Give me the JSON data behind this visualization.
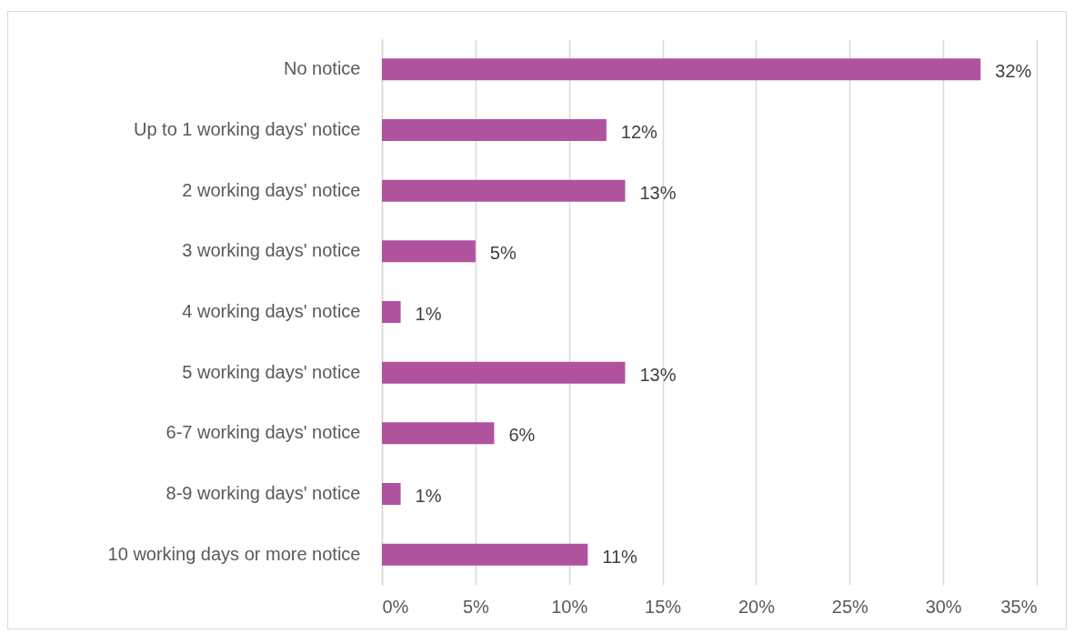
{
  "chart_data": {
    "type": "bar",
    "orientation": "horizontal",
    "categories": [
      "No notice",
      "Up to 1 working days' notice",
      "2 working days' notice",
      "3 working days' notice",
      "4 working days' notice",
      "5 working days' notice",
      "6-7 working days' notice",
      "8-9 working days' notice",
      "10 working days or more notice"
    ],
    "values": [
      32,
      12,
      13,
      5,
      1,
      13,
      6,
      1,
      11
    ],
    "value_labels": [
      "32%",
      "12%",
      "13%",
      "5%",
      "1%",
      "13%",
      "6%",
      "1%",
      "11%"
    ],
    "color": "#b0539f",
    "xlim": [
      0,
      35
    ],
    "xticks": [
      {
        "value": 0,
        "label": "0%"
      },
      {
        "value": 5,
        "label": "5%"
      },
      {
        "value": 10,
        "label": "10%"
      },
      {
        "value": 15,
        "label": "15%"
      },
      {
        "value": 20,
        "label": "20%"
      },
      {
        "value": 25,
        "label": "25%"
      },
      {
        "value": 30,
        "label": "30%"
      },
      {
        "value": 35,
        "label": "35%"
      }
    ],
    "grid": "x"
  }
}
